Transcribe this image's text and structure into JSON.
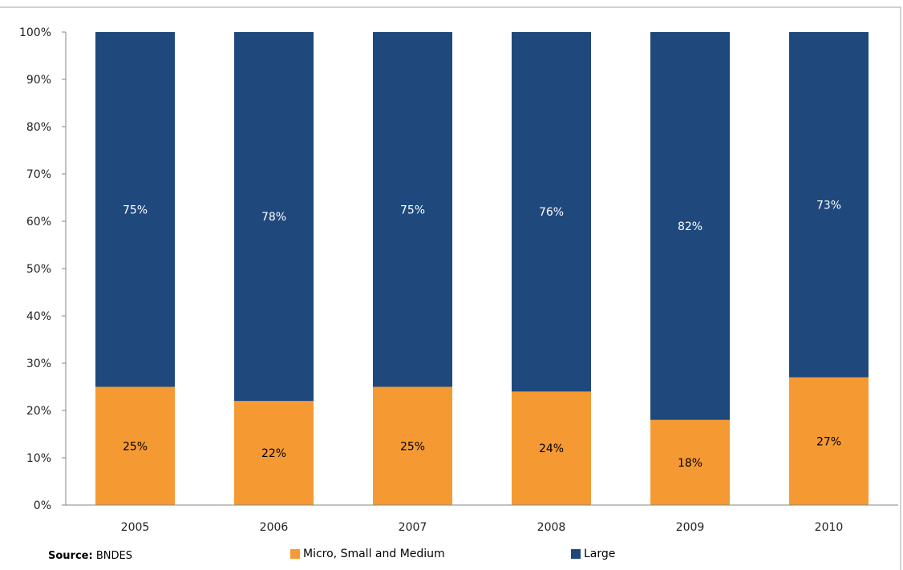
{
  "chart_data": {
    "type": "bar",
    "stacked": true,
    "categories": [
      "2005",
      "2006",
      "2007",
      "2008",
      "2009",
      "2010"
    ],
    "series": [
      {
        "name": "Micro, Small and Medium",
        "values": [
          25,
          22,
          25,
          24,
          18,
          27
        ],
        "labels": [
          "25%",
          "22%",
          "25%",
          "24%",
          "18%",
          "27%"
        ],
        "color": "#F59A33",
        "label_color": "#000000"
      },
      {
        "name": "Large",
        "values": [
          75,
          78,
          75,
          76,
          82,
          73
        ],
        "labels": [
          "75%",
          "78%",
          "75%",
          "76%",
          "82%",
          "73%"
        ],
        "color": "#1F497D",
        "label_color": "#FFFFFF"
      }
    ],
    "ylim": [
      0,
      100
    ],
    "yticks": [
      "0%",
      "10%",
      "20%",
      "30%",
      "40%",
      "50%",
      "60%",
      "70%",
      "80%",
      "90%",
      "100%"
    ],
    "grid": false,
    "legend_position": "bottom"
  },
  "source": {
    "label": "Source:",
    "text": "BNDES"
  }
}
